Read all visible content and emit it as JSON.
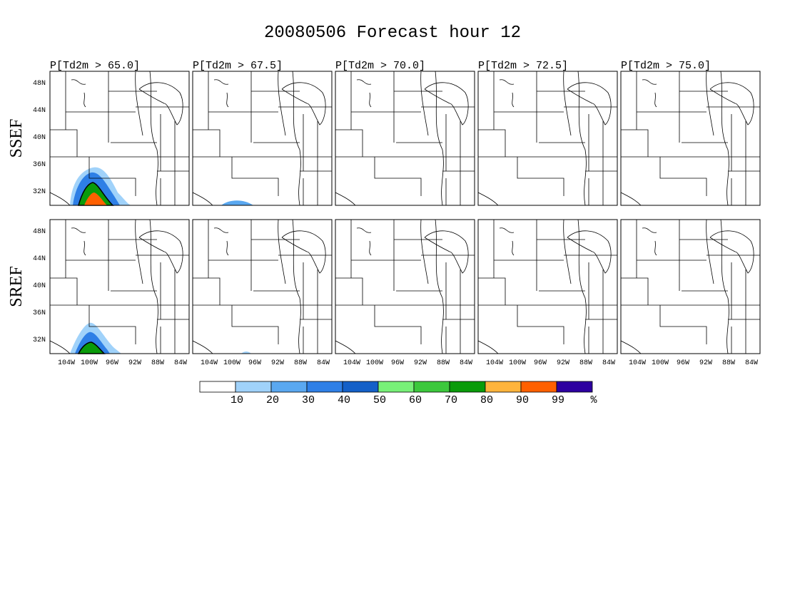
{
  "title": "20080506 Forecast hour 12",
  "columns": [
    "P[Td2m > 65.0]",
    "P[Td2m > 67.5]",
    "P[Td2m > 70.0]",
    "P[Td2m > 72.5]",
    "P[Td2m > 75.0]"
  ],
  "rows": [
    "SSEF",
    "SREF"
  ],
  "lat_labels": [
    "48N",
    "44N",
    "40N",
    "36N",
    "32N"
  ],
  "lon_labels": [
    "104W",
    "100W",
    "96W",
    "92W",
    "88W",
    "84W"
  ],
  "colorbar": {
    "labels": [
      "10",
      "20",
      "30",
      "40",
      "50",
      "60",
      "70",
      "80",
      "90",
      "99",
      "%"
    ],
    "colors": [
      "#ffffff",
      "#a0d2fa",
      "#5aa8f0",
      "#2e7fe6",
      "#1460c8",
      "#78f078",
      "#3cc83c",
      "#0a9b0a",
      "#ffb43c",
      "#ff6000",
      "#2d00a0"
    ]
  }
}
